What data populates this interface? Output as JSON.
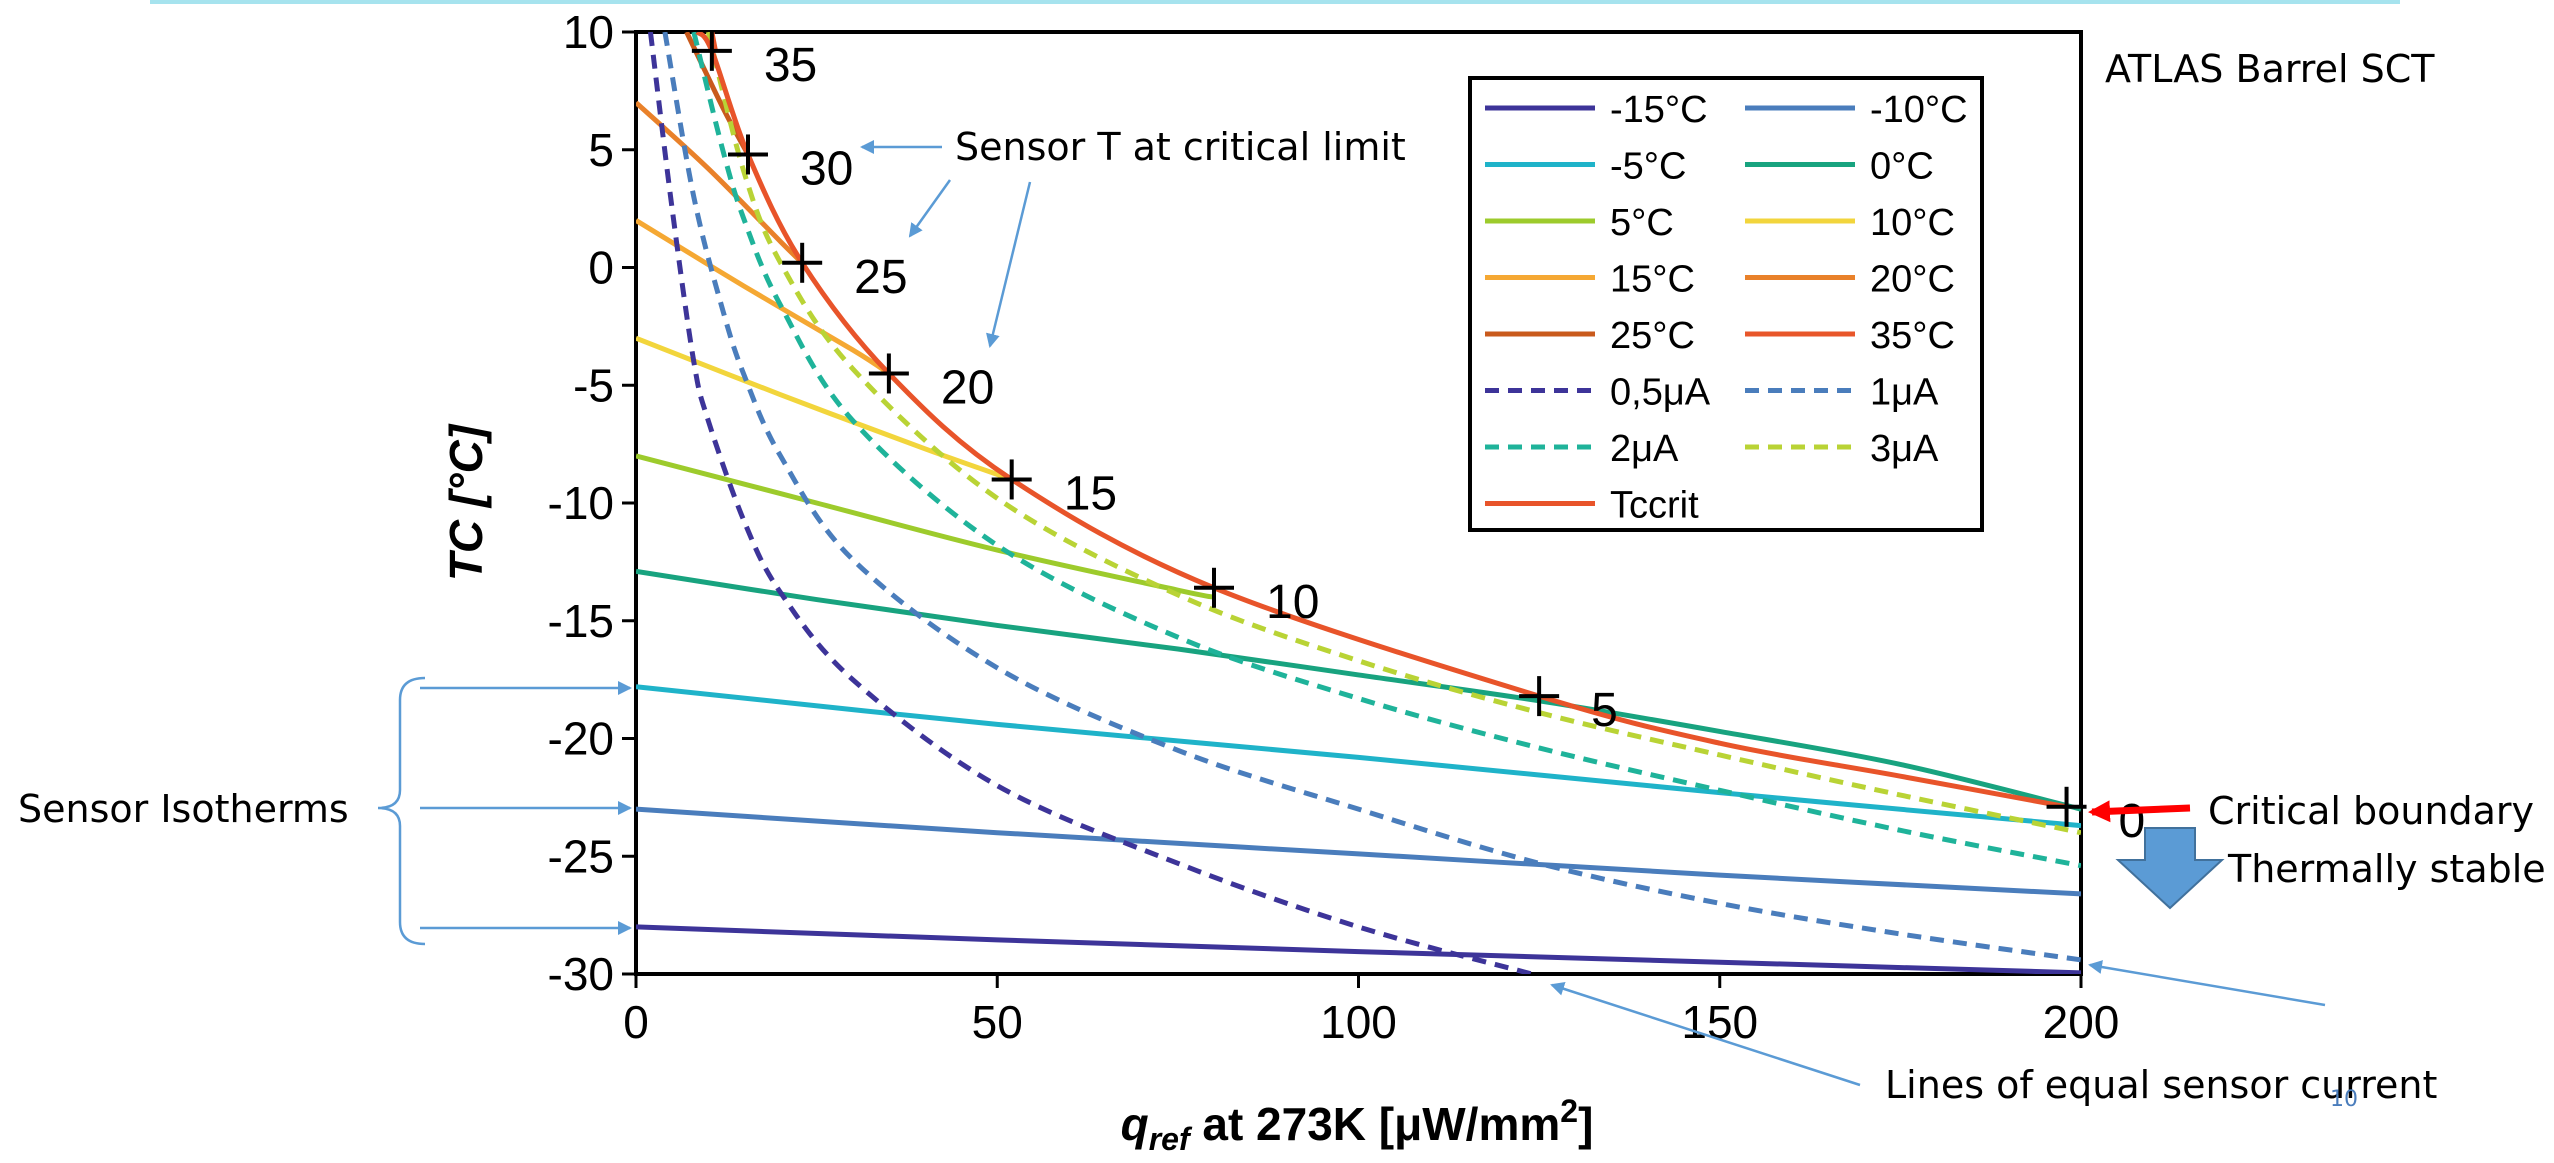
{
  "slide": {
    "title_box_text": "ATLAS Barrel SCT",
    "page_number": "10"
  },
  "annotations": {
    "critical_limit": "Sensor T at critical limit",
    "sensor_isotherms": "Sensor Isotherms",
    "critical_boundary": "Critical boundary",
    "thermally_stable": "Thermally stable",
    "equal_current": "Lines of equal sensor current"
  },
  "colors": {
    "annotation_arrow": "#5b9bd5",
    "critical_arrow": "#ff0000",
    "stable_arrow": "#5b9bd5",
    "top_rule": "#a6e3ee"
  },
  "chart_data": {
    "type": "line",
    "title": "",
    "xlabel": {
      "main": "q",
      "sub": "ref",
      "rest": " at 273K [μW/mm",
      "sup": "2",
      "end": "]"
    },
    "ylabel": "TC [°C]",
    "xlim": [
      0,
      200
    ],
    "ylim": [
      -30,
      10
    ],
    "xticks": [
      0,
      50,
      100,
      150,
      200
    ],
    "yticks": [
      10,
      5,
      0,
      -5,
      -10,
      -15,
      -20,
      -25,
      -30
    ],
    "grid": false,
    "legend_position": "top-right",
    "series": [
      {
        "name": "-15°C",
        "color": "#3d3499",
        "dash": false,
        "legend": true,
        "x": [
          0,
          50,
          100,
          150,
          200
        ],
        "y": [
          -28.0,
          -28.55,
          -29.05,
          -29.5,
          -29.95
        ]
      },
      {
        "name": "-10°C",
        "color": "#4a7dbc",
        "dash": false,
        "legend": true,
        "x": [
          0,
          50,
          100,
          150,
          200
        ],
        "y": [
          -23.0,
          -24.0,
          -24.9,
          -25.8,
          -26.6
        ]
      },
      {
        "name": "-5°C",
        "color": "#1fb3c9",
        "dash": false,
        "legend": true,
        "x": [
          0,
          50,
          100,
          150,
          200
        ],
        "y": [
          -17.8,
          -19.4,
          -20.8,
          -22.3,
          -23.7
        ]
      },
      {
        "name": "0°C",
        "color": "#18a37f",
        "dash": false,
        "legend": true,
        "x": [
          0,
          25,
          50,
          75,
          100,
          125,
          150,
          175,
          200
        ],
        "y": [
          -12.9,
          -14.1,
          -15.2,
          -16.2,
          -17.3,
          -18.4,
          -19.7,
          -21.1,
          -23.0
        ]
      },
      {
        "name": "5°C",
        "color": "#9dcb2c",
        "dash": false,
        "legend": true,
        "x": [
          0,
          25,
          50,
          75,
          80
        ],
        "y": [
          -8.0,
          -10.0,
          -12.0,
          -13.7,
          -14.0
        ]
      },
      {
        "name": "10°C",
        "color": "#f2d53c",
        "dash": false,
        "legend": true,
        "x": [
          0,
          20,
          40,
          52
        ],
        "y": [
          -3.0,
          -5.4,
          -7.7,
          -9.0
        ]
      },
      {
        "name": "15°C",
        "color": "#f5a833",
        "dash": false,
        "legend": true,
        "x": [
          0,
          15,
          30,
          35
        ],
        "y": [
          2.0,
          -0.8,
          -3.5,
          -4.5
        ]
      },
      {
        "name": "20°C",
        "color": "#e9812a",
        "dash": false,
        "legend": true,
        "x": [
          0,
          10,
          20,
          23
        ],
        "y": [
          7.0,
          4.2,
          1.1,
          0.2
        ]
      },
      {
        "name": "25°C",
        "color": "#c95a1c",
        "dash": false,
        "legend": true,
        "x": [
          7,
          12,
          15.5
        ],
        "y": [
          10.0,
          6.8,
          4.8
        ]
      },
      {
        "name": "35°C",
        "color": "#e8562a",
        "dash": false,
        "legend": true,
        "x": [
          10.5,
          11.0
        ],
        "y": [
          10.0,
          9.2
        ]
      },
      {
        "name": "0,5μA",
        "color": "#3d3499",
        "dash": true,
        "legend": true,
        "x": [
          2,
          5,
          8,
          10,
          15,
          20,
          30,
          50,
          75,
          100,
          124
        ],
        "y": [
          10,
          2.5,
          -4.0,
          -6.5,
          -10.8,
          -13.8,
          -17.5,
          -22.0,
          -25.3,
          -28.0,
          -30.0
        ]
      },
      {
        "name": "1μA",
        "color": "#4a7dbc",
        "dash": true,
        "legend": true,
        "x": [
          4,
          8,
          12,
          15,
          20,
          30,
          50,
          75,
          100,
          125,
          150,
          175,
          200
        ],
        "y": [
          10,
          3.0,
          -1.8,
          -4.6,
          -8.0,
          -12.4,
          -17.0,
          -20.5,
          -23.0,
          -25.3,
          -27.0,
          -28.3,
          -29.4
        ]
      },
      {
        "name": "2μA",
        "color": "#1fb39a",
        "dash": true,
        "legend": true,
        "x": [
          8,
          12,
          15,
          20,
          30,
          50,
          75,
          100,
          125,
          150,
          175,
          200
        ],
        "y": [
          10,
          5.0,
          2.0,
          -1.6,
          -6.5,
          -11.8,
          -15.7,
          -18.3,
          -20.4,
          -22.2,
          -23.9,
          -25.4
        ]
      },
      {
        "name": "3μA",
        "color": "#b9d335",
        "dash": true,
        "legend": true,
        "x": [
          10,
          15,
          20,
          30,
          50,
          75,
          100,
          125,
          150,
          175,
          200
        ],
        "y": [
          10,
          4.0,
          0.2,
          -4.3,
          -9.8,
          -13.9,
          -16.7,
          -18.9,
          -20.7,
          -22.4,
          -24.0
        ]
      },
      {
        "name": "Tccrit",
        "color": "#e8542a",
        "dash": false,
        "legend": true,
        "x": [
          8.5,
          10.5,
          15.5,
          23,
          35,
          52,
          80,
          125,
          150,
          175,
          198
        ],
        "y": [
          10,
          9.2,
          4.8,
          0.2,
          -4.5,
          -9.0,
          -13.6,
          -18.2,
          -20.2,
          -21.6,
          -22.9
        ]
      }
    ],
    "crit_points": [
      {
        "x": 10.5,
        "y": 9.2,
        "label": "35"
      },
      {
        "x": 15.5,
        "y": 4.8,
        "label": "30"
      },
      {
        "x": 23,
        "y": 0.2,
        "label": "25"
      },
      {
        "x": 35,
        "y": -4.5,
        "label": "20"
      },
      {
        "x": 52,
        "y": -9.0,
        "label": "15"
      },
      {
        "x": 80,
        "y": -13.6,
        "label": "10"
      },
      {
        "x": 125,
        "y": -18.2,
        "label": "5"
      },
      {
        "x": 198,
        "y": -22.9,
        "label": "0"
      }
    ]
  }
}
